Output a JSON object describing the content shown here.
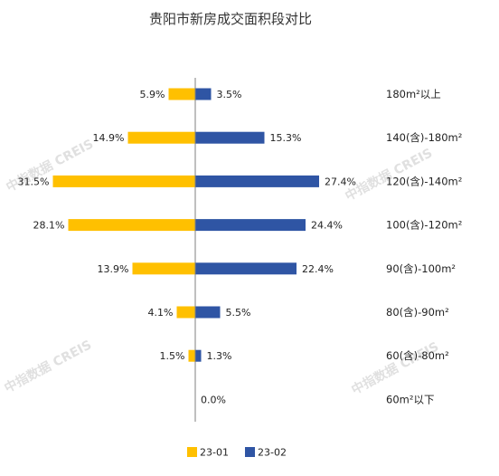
{
  "chart_data": {
    "type": "bar",
    "orientation": "horizontal-diverging",
    "title": "贵阳市新房成交面积段对比",
    "categories": [
      "180m²以上",
      "140(含)-180m²",
      "120(含)-140m²",
      "100(含)-120m²",
      "90(含)-100m²",
      "80(含)-90m²",
      "60(含)-80m²",
      "60m²以下"
    ],
    "series": [
      {
        "name": "23-01",
        "color": "#FFC000",
        "side": "left",
        "values": [
          5.9,
          14.9,
          31.5,
          28.1,
          13.9,
          4.1,
          1.5,
          0.0
        ]
      },
      {
        "name": "23-02",
        "color": "#2F55A4",
        "side": "right",
        "values": [
          3.5,
          15.3,
          27.4,
          24.4,
          22.4,
          5.5,
          1.3,
          0.0
        ]
      }
    ],
    "value_suffix": "%",
    "legend_position": "bottom",
    "grid": false
  },
  "watermark": {
    "text": "中指数据 CREIS"
  }
}
